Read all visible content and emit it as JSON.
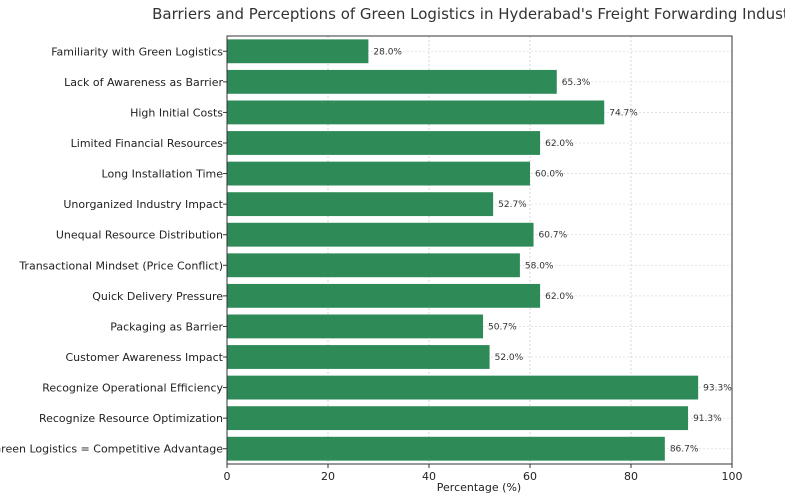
{
  "chart_data": {
    "type": "bar",
    "orientation": "horizontal",
    "title": "Barriers and Perceptions of Green Logistics in Hyderabad's Freight Forwarding Industry",
    "xlabel": "Percentage (%)",
    "ylabel": "",
    "xlim": [
      0,
      100
    ],
    "xticks": [
      0,
      20,
      40,
      60,
      80,
      100
    ],
    "grid": true,
    "bar_color": "#2e8b57",
    "categories": [
      "Familiarity with Green Logistics",
      "Lack of Awareness as Barrier",
      "High Initial Costs",
      "Limited Financial Resources",
      "Long Installation Time",
      "Unorganized Industry Impact",
      "Unequal Resource Distribution",
      "Transactional Mindset (Price Conflict)",
      "Quick Delivery Pressure",
      "Packaging as Barrier",
      "Customer Awareness Impact",
      "Recognize Operational Efficiency",
      "Recognize Resource Optimization",
      "Green Logistics = Competitive Advantage"
    ],
    "values": [
      28.0,
      65.3,
      74.7,
      62.0,
      60.0,
      52.7,
      60.7,
      58.0,
      62.0,
      50.7,
      52.0,
      93.3,
      91.3,
      86.7
    ],
    "data_labels": [
      "28.0%",
      "65.3%",
      "74.7%",
      "62.0%",
      "60.0%",
      "52.7%",
      "60.7%",
      "58.0%",
      "62.0%",
      "50.7%",
      "52.0%",
      "93.3%",
      "91.3%",
      "86.7%"
    ]
  }
}
